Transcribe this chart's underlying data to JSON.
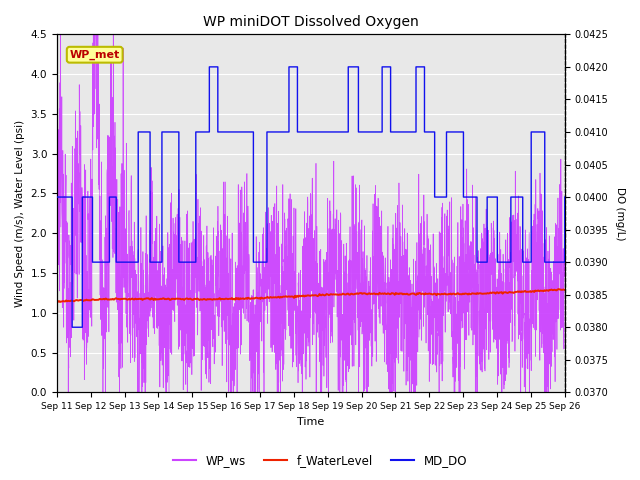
{
  "title": "WP miniDOT Dissolved Oxygen",
  "xlabel": "Time",
  "ylabel_left": "Wind Speed (m/s), Water Level (psi)",
  "ylabel_right": "DO (mg/L)",
  "ylim_left": [
    0.0,
    4.5
  ],
  "ylim_right": [
    0.037,
    0.0425
  ],
  "yticks_right": [
    0.037,
    0.0375,
    0.038,
    0.0385,
    0.039,
    0.0395,
    0.04,
    0.0405,
    0.041,
    0.0415,
    0.042,
    0.0425
  ],
  "xtick_labels": [
    "Sep 11",
    "Sep 12",
    "Sep 13",
    "Sep 14",
    "Sep 15",
    "Sep 16",
    "Sep 17",
    "Sep 18",
    "Sep 19",
    "Sep 20",
    "Sep 21",
    "Sep 22",
    "Sep 23",
    "Sep 24",
    "Sep 25",
    "Sep 26"
  ],
  "wp_ws_color": "#CC44FF",
  "f_wl_color": "#EE2200",
  "md_do_color": "#1111EE",
  "annotation_text": "WP_met",
  "annotation_facecolor": "#FFFF99",
  "annotation_edgecolor": "#BBBB00",
  "annotation_textcolor": "#BB0000",
  "bg_color": "#E8E8E8",
  "figsize": [
    6.4,
    4.8
  ],
  "dpi": 100
}
